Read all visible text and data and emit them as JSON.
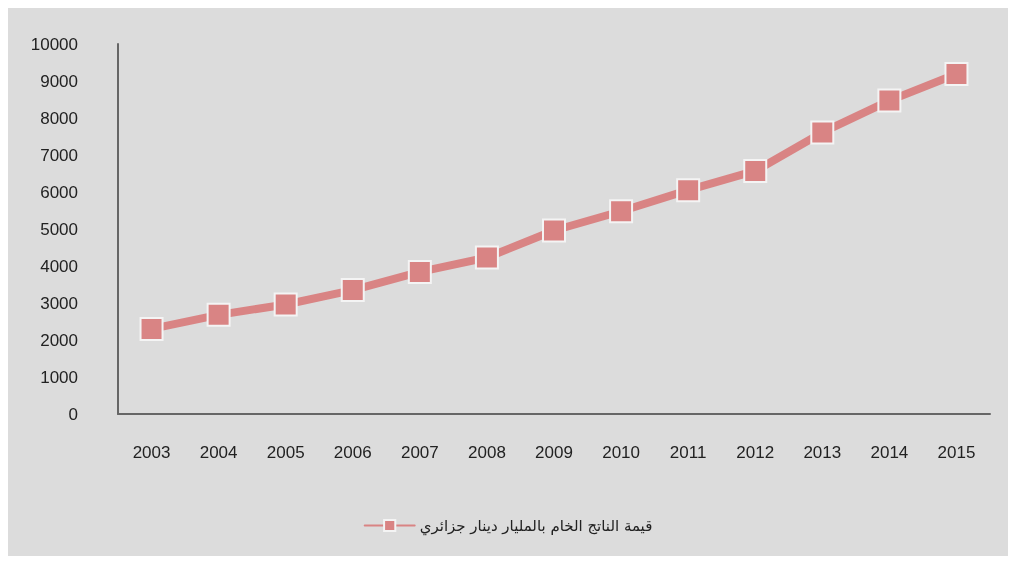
{
  "chart_data": {
    "type": "line",
    "categories": [
      "2003",
      "2004",
      "2005",
      "2006",
      "2007",
      "2008",
      "2009",
      "2010",
      "2011",
      "2012",
      "2013",
      "2014",
      "2015"
    ],
    "series": [
      {
        "name": "قيمة الناتج الخام بالمليار دينار جزائري",
        "color": "#d98484",
        "values": [
          2300,
          2680,
          2960,
          3350,
          3840,
          4230,
          4960,
          5480,
          6050,
          6570,
          7610,
          8470,
          9190
        ]
      }
    ],
    "ylim": [
      0,
      10000
    ],
    "yticks": [
      0,
      1000,
      2000,
      3000,
      4000,
      5000,
      6000,
      7000,
      8000,
      9000,
      10000
    ],
    "grid": false,
    "legend": "bottom",
    "marker": "square",
    "line_style": "solid"
  }
}
